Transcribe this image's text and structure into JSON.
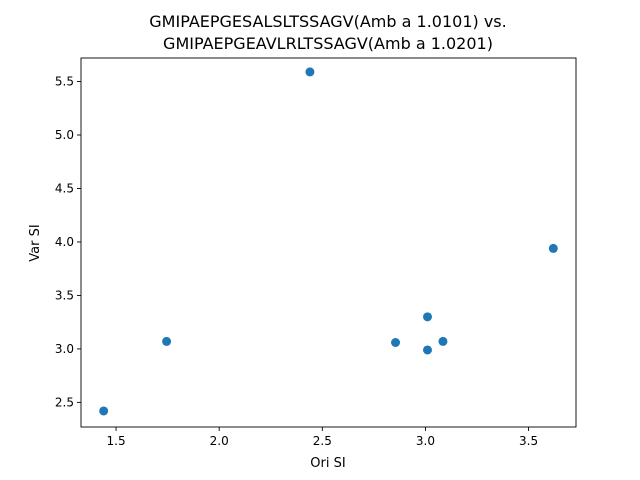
{
  "chart_data": {
    "type": "scatter",
    "title_lines": [
      "GMIPAEPGESALSLTSSAGV(Amb a 1.0101) vs.",
      "GMIPAEPGEAVLRLTSSAGV(Amb a 1.0201)"
    ],
    "xlabel": "Ori SI",
    "ylabel": "Var SI",
    "xlim": [
      1.33,
      3.73
    ],
    "ylim": [
      2.27,
      5.72
    ],
    "xticks": [
      1.5,
      2.0,
      2.5,
      3.0,
      3.5
    ],
    "xtick_labels": [
      "1.5",
      "2.0",
      "2.5",
      "3.0",
      "3.5"
    ],
    "yticks": [
      2.5,
      3.0,
      3.5,
      4.0,
      4.5,
      5.0,
      5.5
    ],
    "ytick_labels": [
      "2.5",
      "3.0",
      "3.5",
      "4.0",
      "4.5",
      "5.0",
      "5.5"
    ],
    "grid": false,
    "marker_color": "#1f77b4",
    "points": [
      {
        "x": 1.44,
        "y": 2.42
      },
      {
        "x": 1.745,
        "y": 3.07
      },
      {
        "x": 2.44,
        "y": 5.59
      },
      {
        "x": 2.855,
        "y": 3.06
      },
      {
        "x": 3.01,
        "y": 3.3
      },
      {
        "x": 3.01,
        "y": 2.99
      },
      {
        "x": 3.085,
        "y": 3.07
      },
      {
        "x": 3.62,
        "y": 3.94
      }
    ]
  }
}
